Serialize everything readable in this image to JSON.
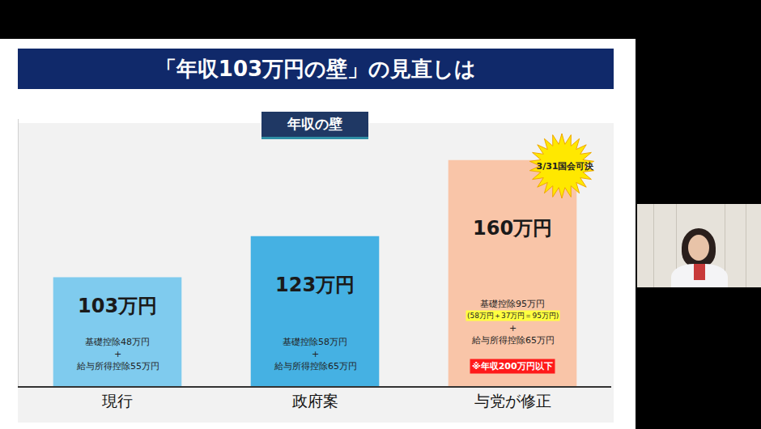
{
  "chart_data": {
    "type": "bar",
    "title": "「年収103万円の壁」の見直しは",
    "subtitle": "年収の壁",
    "categories": [
      "現行",
      "政府案",
      "与党が修正"
    ],
    "values": [
      103,
      123,
      160
    ],
    "value_labels": [
      "103万円",
      "123万円",
      "160万円"
    ],
    "colors": [
      "#7fcbee",
      "#45b1e3",
      "#f9c5a8"
    ],
    "ylim": [
      50,
      180
    ],
    "yticks": [],
    "tick_labels": "x",
    "grid": false,
    "data_labels": true,
    "annotations": [
      {
        "category": "現行",
        "lines": [
          "基礎控除48万円",
          "+",
          "給与所得控除55万円"
        ]
      },
      {
        "category": "政府案",
        "lines": [
          "基礎控除58万円",
          "+",
          "給与所得控除65万円"
        ]
      },
      {
        "category": "与党が修正",
        "lines": [
          "基礎控除95万円",
          "(58万円＋37万円＝95万円)",
          "+",
          "給与所得控除65万円",
          "※年収200万円以下"
        ]
      }
    ],
    "badge": {
      "category": "与党が修正",
      "text": "3/31国会可決"
    }
  }
}
